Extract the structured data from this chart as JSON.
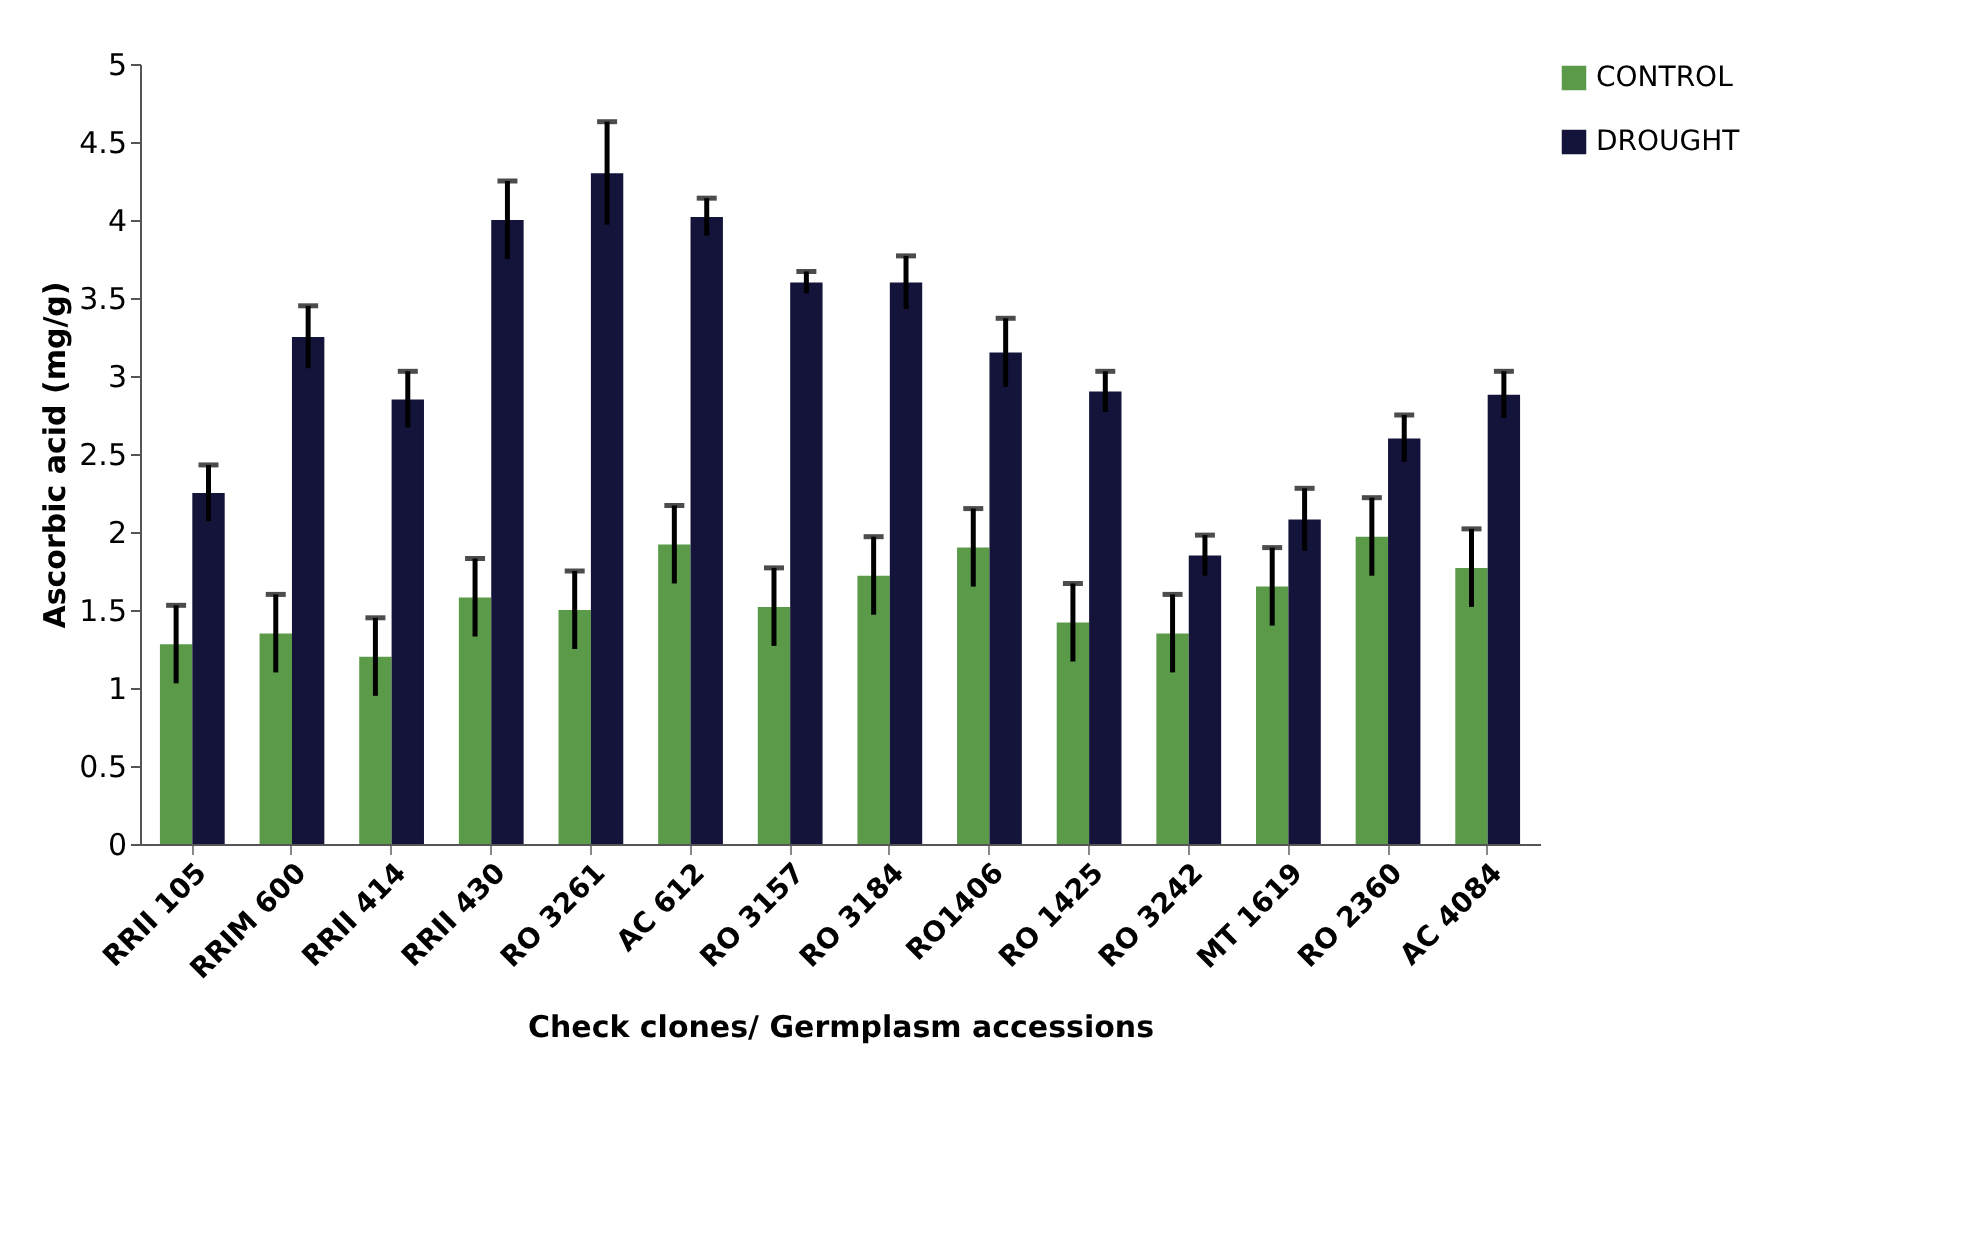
{
  "chart_data": {
    "type": "bar",
    "xlabel": "Check clones/ Germplasm accessions",
    "ylabel": "Ascorbic acid (mg/g)",
    "categories": [
      "RRII 105",
      "RRIM 600",
      "RRII 414",
      "RRII 430",
      "RO 3261",
      "AC 612",
      "RO 3157",
      "RO 3184",
      "RO1406",
      "RO 1425",
      "RO 3242",
      "MT 1619",
      "RO 2360",
      "AC 4084"
    ],
    "series": [
      {
        "name": "CONTROL",
        "color": "#5a9a48",
        "values": [
          1.28,
          1.35,
          1.2,
          1.58,
          1.5,
          1.92,
          1.52,
          1.72,
          1.9,
          1.42,
          1.35,
          1.65,
          1.97,
          1.77
        ],
        "errors": [
          0.25,
          0.25,
          0.25,
          0.25,
          0.25,
          0.25,
          0.25,
          0.25,
          0.25,
          0.25,
          0.25,
          0.25,
          0.25,
          0.25
        ]
      },
      {
        "name": "DROUGHT",
        "color": "#14143a",
        "values": [
          2.25,
          3.25,
          2.85,
          4.0,
          4.3,
          4.02,
          3.6,
          3.6,
          3.15,
          2.9,
          1.85,
          2.08,
          2.6,
          2.88
        ],
        "errors": [
          0.18,
          0.2,
          0.18,
          0.25,
          0.33,
          0.12,
          0.07,
          0.17,
          0.22,
          0.13,
          0.13,
          0.2,
          0.15,
          0.15
        ]
      }
    ],
    "ylim": [
      0,
      5
    ],
    "yticks": [
      0,
      0.5,
      1,
      1.5,
      2,
      2.5,
      3,
      3.5,
      4,
      4.5,
      5
    ],
    "grid": false,
    "legend": "top right"
  }
}
